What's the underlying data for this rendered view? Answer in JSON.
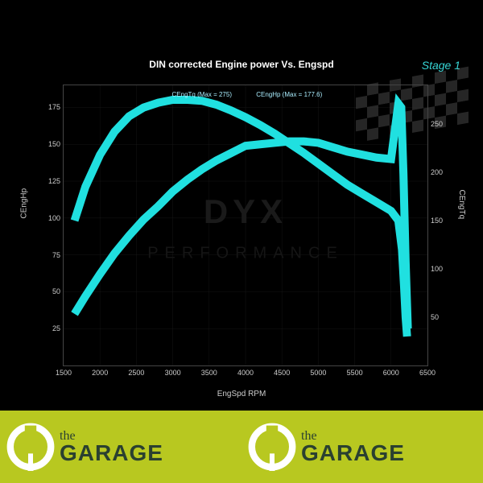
{
  "chart": {
    "title": "DIN corrected Engine power Vs. Engspd",
    "stage_label": "Stage 1",
    "stage_color": "#36d6d6",
    "type": "line",
    "background_color": "#000000",
    "grid_color": "#333333",
    "axis_color": "#888888",
    "text_color": "#cccccc",
    "xlabel": "EngSpd RPM",
    "ylabel": "CEngHp",
    "y2label": "CEngTq",
    "xlim": [
      1500,
      6500
    ],
    "ylim": [
      0,
      190
    ],
    "y2lim": [
      0,
      290
    ],
    "xticks": [
      1500,
      2000,
      2500,
      3000,
      3500,
      4000,
      4500,
      5000,
      5500,
      6000,
      6500
    ],
    "yticks": [
      25,
      50,
      75,
      100,
      125,
      150,
      175
    ],
    "y2ticks": [
      50,
      100,
      150,
      200,
      250
    ],
    "line_color": "#20e0e0",
    "line_width": 2,
    "series": {
      "torque": {
        "label": "CEngTq (Max = 275)",
        "peak_x_pct": 38,
        "axis": "y2",
        "points": [
          [
            1650,
            150
          ],
          [
            1800,
            185
          ],
          [
            2000,
            218
          ],
          [
            2200,
            242
          ],
          [
            2400,
            258
          ],
          [
            2600,
            267
          ],
          [
            2800,
            272
          ],
          [
            3000,
            275
          ],
          [
            3200,
            275
          ],
          [
            3400,
            274
          ],
          [
            3600,
            270
          ],
          [
            3800,
            264
          ],
          [
            4000,
            257
          ],
          [
            4200,
            249
          ],
          [
            4400,
            240
          ],
          [
            4600,
            230
          ],
          [
            4800,
            220
          ],
          [
            5000,
            209
          ],
          [
            5200,
            198
          ],
          [
            5400,
            187
          ],
          [
            5600,
            178
          ],
          [
            5800,
            169
          ],
          [
            6000,
            160
          ],
          [
            6100,
            150
          ],
          [
            6150,
            120
          ],
          [
            6180,
            80
          ],
          [
            6200,
            50
          ],
          [
            6220,
            30
          ]
        ]
      },
      "power": {
        "label": "CEngHp (Max = 177.6)",
        "peak_x_pct": 62,
        "axis": "y",
        "points": [
          [
            1650,
            35
          ],
          [
            1800,
            47
          ],
          [
            2000,
            62
          ],
          [
            2200,
            76
          ],
          [
            2400,
            88
          ],
          [
            2600,
            99
          ],
          [
            2800,
            108
          ],
          [
            3000,
            118
          ],
          [
            3200,
            126
          ],
          [
            3400,
            133
          ],
          [
            3600,
            139
          ],
          [
            3800,
            144
          ],
          [
            4000,
            149
          ],
          [
            4200,
            150
          ],
          [
            4400,
            151
          ],
          [
            4600,
            152
          ],
          [
            4800,
            152
          ],
          [
            5000,
            151
          ],
          [
            5200,
            148
          ],
          [
            5400,
            145
          ],
          [
            5600,
            143
          ],
          [
            5800,
            141
          ],
          [
            6000,
            140
          ],
          [
            6100,
            177.6
          ],
          [
            6140,
            175
          ],
          [
            6170,
            130
          ],
          [
            6200,
            70
          ],
          [
            6230,
            25
          ]
        ]
      }
    },
    "watermark_main": "DYX",
    "watermark_sub": "PERFORMANCE"
  },
  "banner": {
    "background_color": "#b8c820",
    "text_the": "the",
    "text_main": "GARAGE",
    "text_color": "#2a4030",
    "icon_color": "#ffffff"
  }
}
